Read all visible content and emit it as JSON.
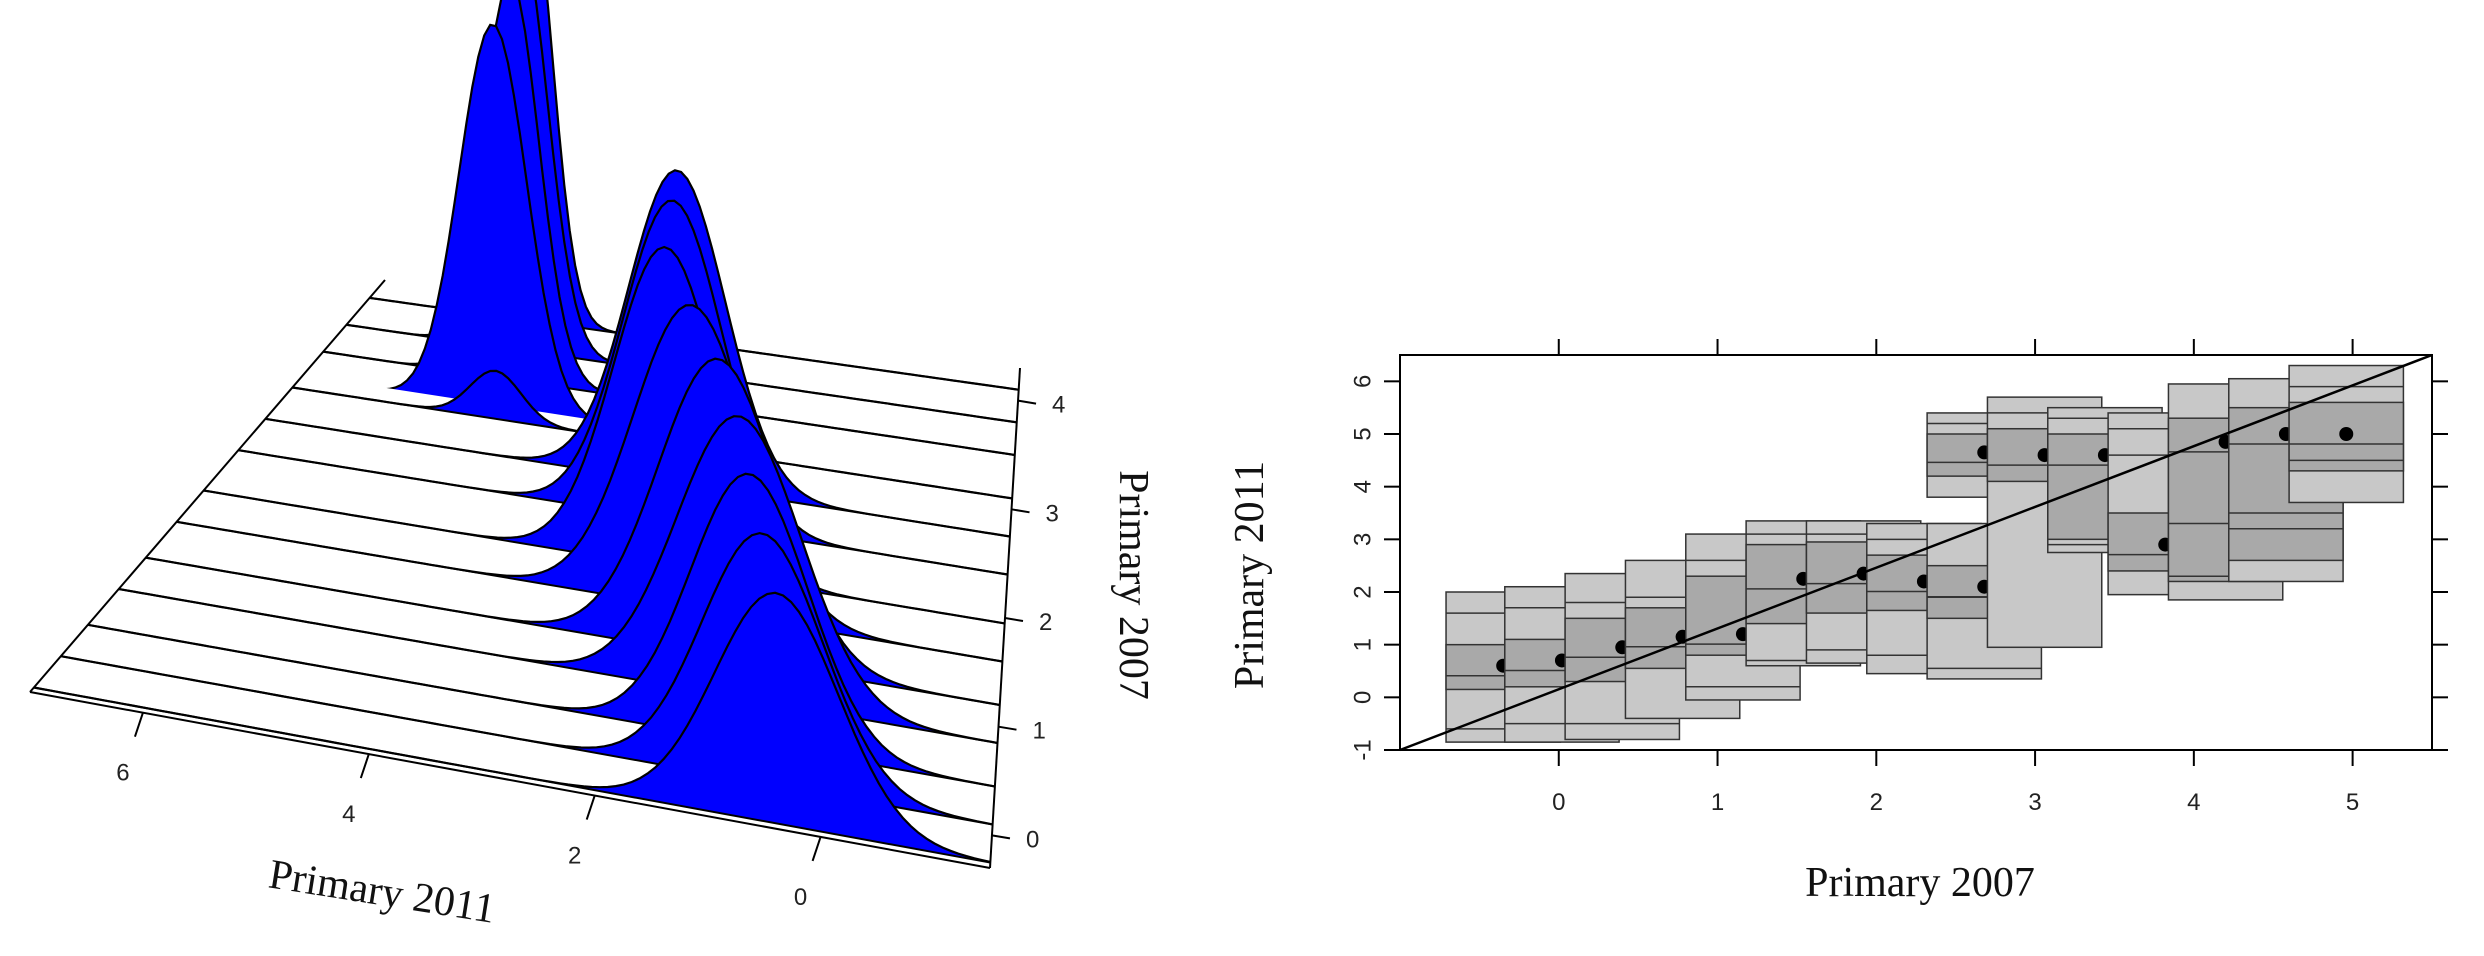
{
  "chart_data": [
    {
      "type": "area",
      "xlabel": "Primary 2011",
      "ylabel": "Primary 2007",
      "x_ticks": [
        "6",
        "4",
        "2",
        "0"
      ],
      "y_ticks": [
        "0",
        "1",
        "2",
        "3",
        "4"
      ],
      "xlim": [
        -1.5,
        7.0
      ],
      "ylim": [
        -0.3,
        4.3
      ],
      "fill_color": "#0000ff",
      "series": [
        {
          "y": -0.25,
          "mean": 0.4,
          "sd": 0.55,
          "peak": 0.72
        },
        {
          "y": 0.1,
          "mean": 0.6,
          "sd": 0.55,
          "peak": 0.78
        },
        {
          "y": 0.45,
          "mean": 0.8,
          "sd": 0.55,
          "peak": 0.84
        },
        {
          "y": 0.85,
          "mean": 1.0,
          "sd": 0.6,
          "peak": 0.88
        },
        {
          "y": 1.2,
          "mean": 1.3,
          "sd": 0.6,
          "peak": 0.93
        },
        {
          "y": 1.6,
          "mean": 1.7,
          "sd": 0.6,
          "peak": 0.95
        },
        {
          "y": 1.95,
          "mean": 2.1,
          "sd": 0.55,
          "peak": 1.0
        },
        {
          "y": 2.4,
          "mean": 2.2,
          "sd": 0.55,
          "peak": 1.0
        },
        {
          "y": 2.75,
          "mean": 2.3,
          "sd": 0.55,
          "peak": 0.98
        },
        {
          "y": 3.1,
          "mean": 4.6,
          "sd": 0.3,
          "peak": 0.15
        },
        {
          "y": 3.2,
          "mean": 4.7,
          "sd": 0.4,
          "peak": 1.2
        },
        {
          "y": 3.5,
          "mean": 4.7,
          "sd": 0.35,
          "peak": 1.25
        },
        {
          "y": 3.8,
          "mean": 4.8,
          "sd": 0.35,
          "peak": 1.3
        },
        {
          "y": 4.1,
          "mean": 4.9,
          "sd": 0.3,
          "peak": 1.35
        }
      ],
      "grid": false
    },
    {
      "type": "box",
      "xlabel": "Primary 2007",
      "ylabel": "Primary 2011",
      "x_ticks": [
        "0",
        "1",
        "2",
        "3",
        "4",
        "5"
      ],
      "y_ticks": [
        "-1",
        "0",
        "1",
        "2",
        "3",
        "4",
        "5",
        "6"
      ],
      "xlim": [
        -1,
        5.5
      ],
      "ylim": [
        -1,
        6.5
      ],
      "reference_line": {
        "x": [
          -1,
          5.5
        ],
        "y": [
          -1,
          6.5
        ]
      },
      "box_fill": "#b8b8b8",
      "box_bands": [
        {
          "x": -0.35,
          "y": -0.85,
          "q1": 0.15,
          "mean": 0.6,
          "q3": 1.0,
          "y_top": 2.0,
          "outliers": [
            -0.6,
            1.6
          ]
        },
        {
          "x": 0.02,
          "y": -0.85,
          "q1": 0.2,
          "mean": 0.7,
          "q3": 1.1,
          "y_top": 2.1,
          "outliers": [
            -0.5,
            1.7
          ]
        },
        {
          "x": 0.4,
          "y": -0.8,
          "q1": 0.3,
          "mean": 0.95,
          "q3": 1.5,
          "y_top": 2.35,
          "outliers": [
            -0.5,
            1.8
          ]
        },
        {
          "x": 0.78,
          "y": -0.4,
          "q1": 0.55,
          "mean": 1.15,
          "q3": 1.7,
          "y_top": 2.6,
          "outliers": [
            1.9
          ]
        },
        {
          "x": 1.16,
          "y": -0.05,
          "q1": 0.8,
          "mean": 1.2,
          "q3": 2.3,
          "y_top": 3.1,
          "outliers": [
            0.2,
            2.6
          ]
        },
        {
          "x": 1.54,
          "y": 0.6,
          "q1": 1.4,
          "mean": 2.25,
          "q3": 2.9,
          "y_top": 3.35,
          "outliers": [
            0.7,
            3.1
          ]
        },
        {
          "x": 1.92,
          "y": 0.65,
          "q1": 1.6,
          "mean": 2.35,
          "q3": 2.95,
          "y_top": 3.35,
          "outliers": [
            0.9,
            3.1
          ]
        },
        {
          "x": 2.3,
          "y": 0.45,
          "q1": 1.65,
          "mean": 2.2,
          "q3": 2.7,
          "y_top": 3.3,
          "outliers": [
            0.8,
            3.0
          ]
        },
        {
          "x": 2.68,
          "y": 0.35,
          "q1": 1.5,
          "mean": 2.1,
          "q3": 2.5,
          "y_top": 3.3,
          "outliers": [
            0.55,
            1.9
          ]
        },
        {
          "x": 2.68,
          "y": 3.8,
          "q1": 4.2,
          "mean": 4.65,
          "q3": 5.0,
          "y_top": 5.4,
          "outliers": [
            5.2
          ]
        },
        {
          "x": 3.06,
          "y": 0.95,
          "q1": 4.1,
          "mean": 4.6,
          "q3": 5.1,
          "y_top": 5.7,
          "outliers": [
            5.4
          ]
        },
        {
          "x": 3.44,
          "y": 2.75,
          "q1": 3.0,
          "mean": 4.6,
          "q3": 5.0,
          "y_top": 5.5,
          "outliers": [
            5.3,
            2.9
          ]
        },
        {
          "x": 3.82,
          "y": 1.95,
          "q1": 2.4,
          "mean": 2.9,
          "q3": 3.5,
          "y_top": 5.4,
          "outliers": [
            4.6,
            5.1
          ]
        },
        {
          "x": 4.2,
          "y": 1.85,
          "q1": 2.2,
          "mean": 4.85,
          "q3": 5.3,
          "y_top": 5.95,
          "outliers": [
            3.3,
            2.3
          ]
        },
        {
          "x": 4.58,
          "y": 2.2,
          "q1": 2.6,
          "mean": 5.0,
          "q3": 5.5,
          "y_top": 6.05,
          "outliers": [
            3.2,
            3.5
          ]
        },
        {
          "x": 4.96,
          "y": 3.7,
          "q1": 4.3,
          "mean": 5.0,
          "q3": 5.6,
          "y_top": 6.3,
          "outliers": [
            4.5,
            5.9
          ]
        }
      ],
      "grid": false
    }
  ]
}
